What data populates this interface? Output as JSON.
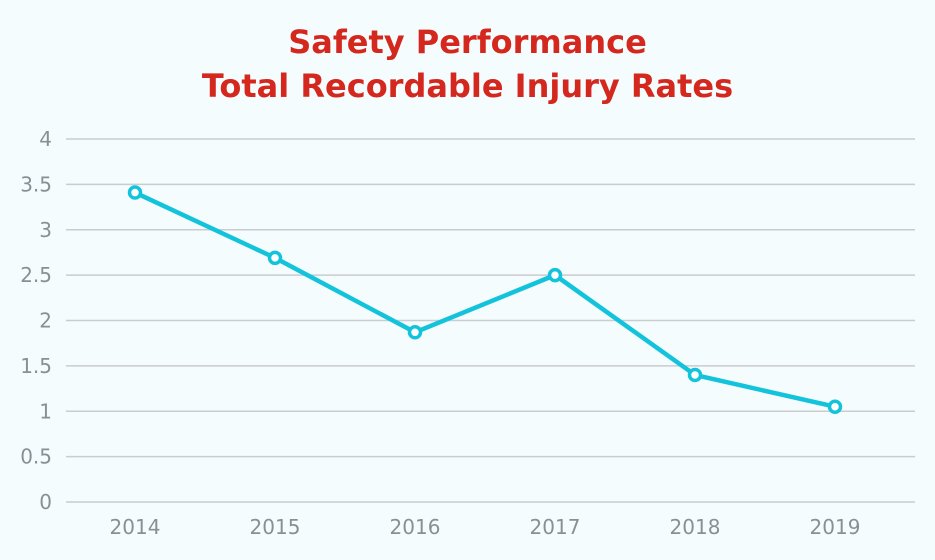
{
  "chart_data": {
    "type": "line",
    "title": "Safety Performance",
    "subtitle": "Total Recordable Injury Rates",
    "xlabel": "",
    "ylabel": "",
    "categories": [
      "2014",
      "2015",
      "2016",
      "2017",
      "2018",
      "2019"
    ],
    "series": [
      {
        "values": [
          3.41,
          2.69,
          1.87,
          2.5,
          1.4,
          1.05
        ],
        "color": "#13c3dc"
      }
    ],
    "ylim": [
      0,
      4
    ],
    "yticks": [
      "0",
      "0.5",
      "1",
      "1.5",
      "2",
      "2.5",
      "3",
      "3.5",
      "4"
    ],
    "grid": true,
    "gridColor": "#c9ccd0",
    "titleColor": "#d4281f",
    "tickColor": "#8a8f94"
  }
}
